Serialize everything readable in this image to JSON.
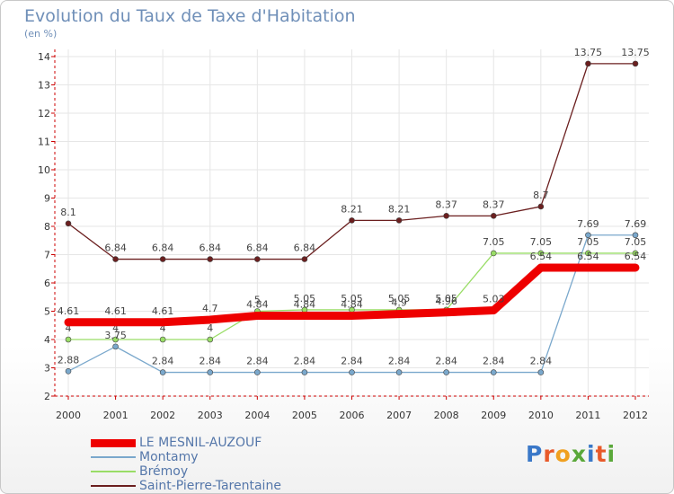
{
  "title": "Evolution du Taux de Taxe d'Habitation",
  "subtitle": "(en %)",
  "brand": "Proxiti",
  "colors": {
    "axis_red": "#cc0000",
    "title": "#6f8fb8"
  },
  "chart_data": {
    "type": "line",
    "x": [
      "2000",
      "2001",
      "2002",
      "2003",
      "2004",
      "2005",
      "2006",
      "2007",
      "2008",
      "2009",
      "2010",
      "2011",
      "2012"
    ],
    "ylim": [
      2,
      14
    ],
    "yticks": [
      "2",
      "3",
      "4",
      "5",
      "6",
      "7",
      "8",
      "9",
      "10",
      "11",
      "12",
      "13",
      "14"
    ],
    "grid": true,
    "legend_position": "bottom-left",
    "series": [
      {
        "name": "Saint-Pierre-Tarentaine",
        "color": "#6b1f1f",
        "width": 1.3,
        "values": [
          8.1,
          6.84,
          6.84,
          6.84,
          6.84,
          6.84,
          8.21,
          8.21,
          8.37,
          8.37,
          8.7,
          13.75,
          13.75
        ],
        "labels": [
          "8.1",
          "6.84",
          "6.84",
          "6.84",
          "6.84",
          "6.84",
          "8.21",
          "8.21",
          "8.37",
          "8.37",
          "8.7",
          "13.75",
          "13.75"
        ]
      },
      {
        "name": "Brémoy",
        "color": "#99dd66",
        "width": 1.3,
        "values": [
          4,
          4,
          4,
          4,
          5,
          5.05,
          5.05,
          5.05,
          5.05,
          7.05,
          7.05,
          7.05,
          7.05
        ],
        "labels": [
          "4",
          "4",
          "4",
          "4",
          "5",
          "5.05",
          "5.05",
          "5.05",
          "5.05",
          "7.05",
          "7.05",
          "7.05",
          "7.05"
        ]
      },
      {
        "name": "Montamy",
        "color": "#7aa8cc",
        "width": 1.3,
        "values": [
          2.88,
          3.75,
          2.84,
          2.84,
          2.84,
          2.84,
          2.84,
          2.84,
          2.84,
          2.84,
          2.84,
          7.69,
          7.69
        ],
        "labels": [
          "2.88",
          "3.75",
          "2.84",
          "2.84",
          "2.84",
          "2.84",
          "2.84",
          "2.84",
          "2.84",
          "2.84",
          "2.84",
          "7.69",
          "7.69"
        ]
      },
      {
        "name": "LE MESNIL-AUZOUF",
        "color": "#ee0000",
        "width": 9,
        "values": [
          4.61,
          4.61,
          4.61,
          4.7,
          4.84,
          4.84,
          4.84,
          4.9,
          4.96,
          5.03,
          6.54,
          6.54,
          6.54
        ],
        "labels": [
          "4.61",
          "4.61",
          "4.61",
          "4.7",
          "4.84",
          "4.84",
          "4.84",
          "4.9",
          "4.96",
          "5.03",
          "6.54",
          "6.54",
          "6.54"
        ]
      }
    ]
  },
  "legend": [
    {
      "label": "LE MESNIL-AUZOUF",
      "color": "#ee0000",
      "thickness": 9
    },
    {
      "label": "Montamy",
      "color": "#7aa8cc",
      "thickness": 2
    },
    {
      "label": "Brémoy",
      "color": "#99dd66",
      "thickness": 2
    },
    {
      "label": "Saint-Pierre-Tarentaine",
      "color": "#6b1f1f",
      "thickness": 2
    }
  ]
}
